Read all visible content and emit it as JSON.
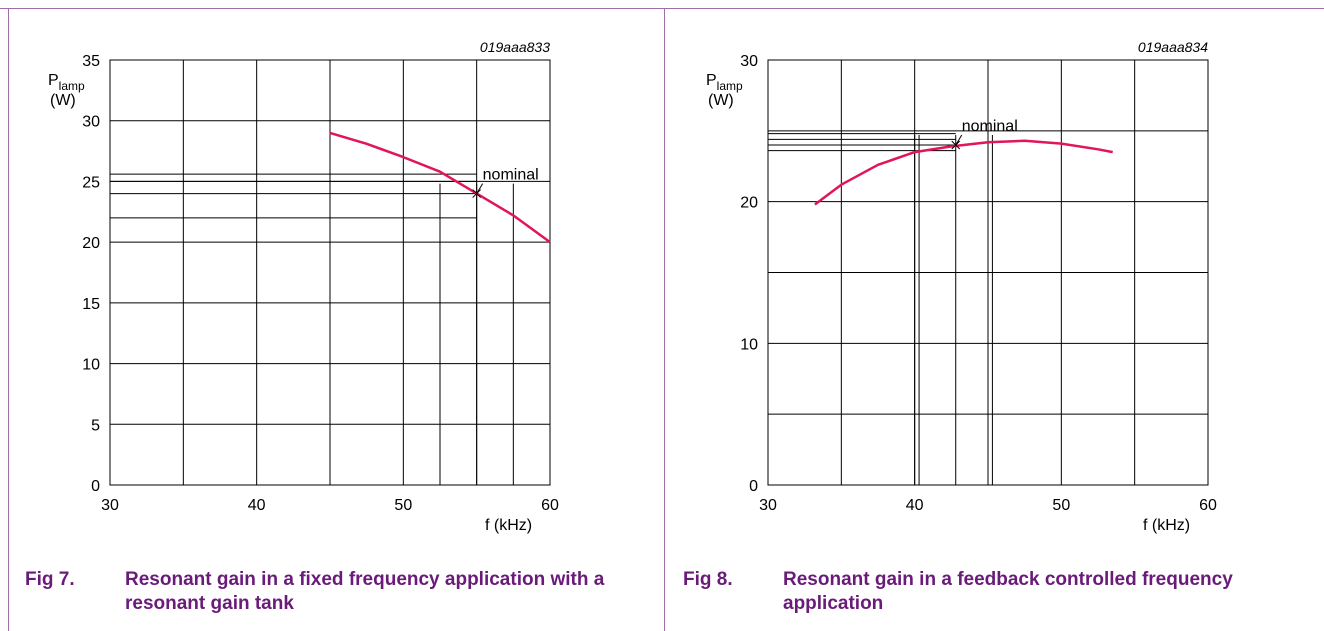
{
  "charts": [
    {
      "figure_number": "Fig 7.",
      "caption": "Resonant gain in a fixed frequency application with a resonant gain tank",
      "code": "019aaa833",
      "curve_color": "#e0155a"
    },
    {
      "figure_number": "Fig 8.",
      "caption": "Resonant gain in a feedback controlled frequency application",
      "code": "019aaa834",
      "curve_color": "#e0155a"
    }
  ],
  "chart_data": [
    {
      "type": "line",
      "title": "",
      "xlabel": "f (kHz)",
      "ylabel_main": "P",
      "ylabel_sub": "lamp",
      "ylabel_unit": "(W)",
      "xlim": [
        30,
        60
      ],
      "ylim": [
        0,
        35
      ],
      "x_grid_lines": [
        30,
        35,
        40,
        45,
        50,
        55,
        60
      ],
      "y_grid_lines": [
        0,
        5,
        10,
        15,
        20,
        25,
        30
      ],
      "x_ticks": [
        30,
        40,
        50,
        60
      ],
      "y_ticks": [
        0,
        5,
        10,
        15,
        20,
        25,
        30,
        35
      ],
      "grid": true,
      "series": [
        {
          "x": [
            45,
            47.5,
            50,
            52.5,
            55,
            57.5,
            60
          ],
          "y": [
            29,
            28.1,
            27,
            25.8,
            24,
            22.2,
            20
          ]
        }
      ],
      "extra_h_lines": [
        25.6,
        25,
        24,
        22
      ],
      "extra_v_lines": [
        52.5,
        55,
        57.5
      ],
      "annotation": {
        "text": "nominal",
        "x": 55,
        "y": 24
      }
    },
    {
      "type": "line",
      "title": "",
      "xlabel": "f (kHz)",
      "ylabel_main": "P",
      "ylabel_sub": "lamp",
      "ylabel_unit": "(W)",
      "xlim": [
        30,
        60
      ],
      "ylim": [
        0,
        30
      ],
      "x_grid_lines": [
        30,
        35,
        40,
        45,
        50,
        55,
        60
      ],
      "y_grid_lines": [
        0,
        5,
        10,
        15,
        20,
        25
      ],
      "x_ticks": [
        30,
        40,
        50,
        60
      ],
      "y_ticks": [
        0,
        10,
        20,
        30
      ],
      "grid": true,
      "series": [
        {
          "x": [
            33.2,
            35,
            37.5,
            40,
            42.5,
            45,
            47.5,
            50,
            52.5,
            53.5
          ],
          "y": [
            19.8,
            21.2,
            22.6,
            23.5,
            23.9,
            24.2,
            24.3,
            24.1,
            23.7,
            23.5
          ]
        }
      ],
      "extra_h_lines": [
        24.8,
        24.4,
        24,
        23.6
      ],
      "extra_v_lines": [
        40,
        40.3,
        42.8,
        45,
        45.3
      ],
      "annotation": {
        "text": "nominal",
        "x": 42.8,
        "y": 24
      }
    }
  ]
}
